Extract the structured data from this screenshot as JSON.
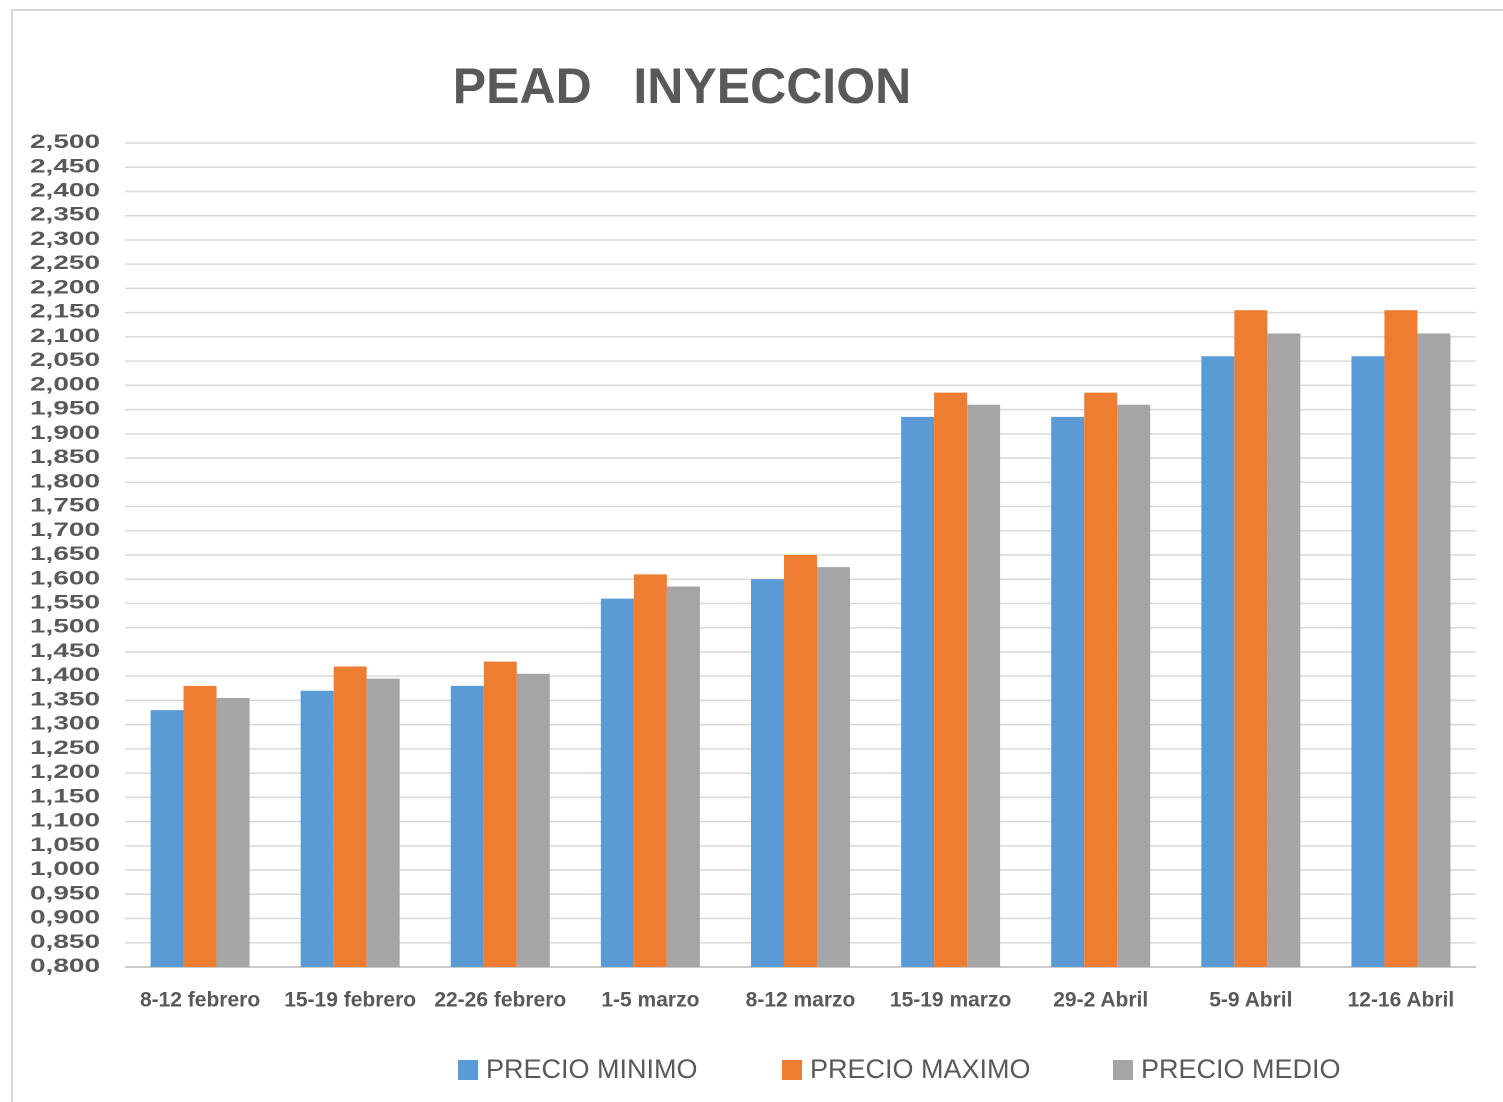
{
  "chart_data": {
    "type": "bar",
    "title": "PEAD   INYECCION",
    "categories": [
      "8-12 febrero",
      "15-19 febrero",
      "22-26 febrero",
      "1-5 marzo",
      "8-12 marzo",
      "15-19 marzo",
      "29-2 Abril",
      "5-9 Abril",
      "12-16 Abril"
    ],
    "series": [
      {
        "name": "PRECIO MINIMO",
        "color": "#5b9bd5",
        "values": [
          1.33,
          1.37,
          1.38,
          1.56,
          1.6,
          1.935,
          1.935,
          2.06,
          2.06
        ]
      },
      {
        "name": "PRECIO MAXIMO",
        "color": "#ed7d31",
        "values": [
          1.38,
          1.42,
          1.43,
          1.61,
          1.65,
          1.985,
          1.985,
          2.155,
          2.155
        ]
      },
      {
        "name": "PRECIO MEDIO",
        "color": "#a5a5a5",
        "values": [
          1.355,
          1.395,
          1.405,
          1.585,
          1.625,
          1.96,
          1.96,
          2.107,
          2.107
        ]
      }
    ],
    "ylim": [
      0.8,
      2.5
    ],
    "yticks": [
      {
        "value": 0.8,
        "label": "0,800"
      },
      {
        "value": 0.85,
        "label": "0,850"
      },
      {
        "value": 0.9,
        "label": "0,900"
      },
      {
        "value": 0.95,
        "label": "0,950"
      },
      {
        "value": 1.0,
        "label": "1,000"
      },
      {
        "value": 1.05,
        "label": "1,050"
      },
      {
        "value": 1.1,
        "label": "1,100"
      },
      {
        "value": 1.15,
        "label": "1,150"
      },
      {
        "value": 1.2,
        "label": "1,200"
      },
      {
        "value": 1.25,
        "label": "1,250"
      },
      {
        "value": 1.3,
        "label": "1,300"
      },
      {
        "value": 1.35,
        "label": "1,350"
      },
      {
        "value": 1.4,
        "label": "1,400"
      },
      {
        "value": 1.45,
        "label": "1,450"
      },
      {
        "value": 1.5,
        "label": "1,500"
      },
      {
        "value": 1.55,
        "label": "1,550"
      },
      {
        "value": 1.6,
        "label": "1,600"
      },
      {
        "value": 1.65,
        "label": "1,650"
      },
      {
        "value": 1.7,
        "label": "1,700"
      },
      {
        "value": 1.75,
        "label": "1,750"
      },
      {
        "value": 1.8,
        "label": "1,800"
      },
      {
        "value": 1.85,
        "label": "1,850"
      },
      {
        "value": 1.9,
        "label": "1,900"
      },
      {
        "value": 1.95,
        "label": "1,950"
      },
      {
        "value": 2.0,
        "label": "2,000"
      },
      {
        "value": 2.05,
        "label": "2,050"
      },
      {
        "value": 2.1,
        "label": "2,100"
      },
      {
        "value": 2.15,
        "label": "2,150"
      },
      {
        "value": 2.2,
        "label": "2,200"
      },
      {
        "value": 2.25,
        "label": "2,250"
      },
      {
        "value": 2.3,
        "label": "2,300"
      },
      {
        "value": 2.35,
        "label": "2,350"
      },
      {
        "value": 2.4,
        "label": "2,400"
      },
      {
        "value": 2.45,
        "label": "2,450"
      },
      {
        "value": 2.5,
        "label": "2,500"
      }
    ],
    "grid": true,
    "legend": "bottom"
  }
}
